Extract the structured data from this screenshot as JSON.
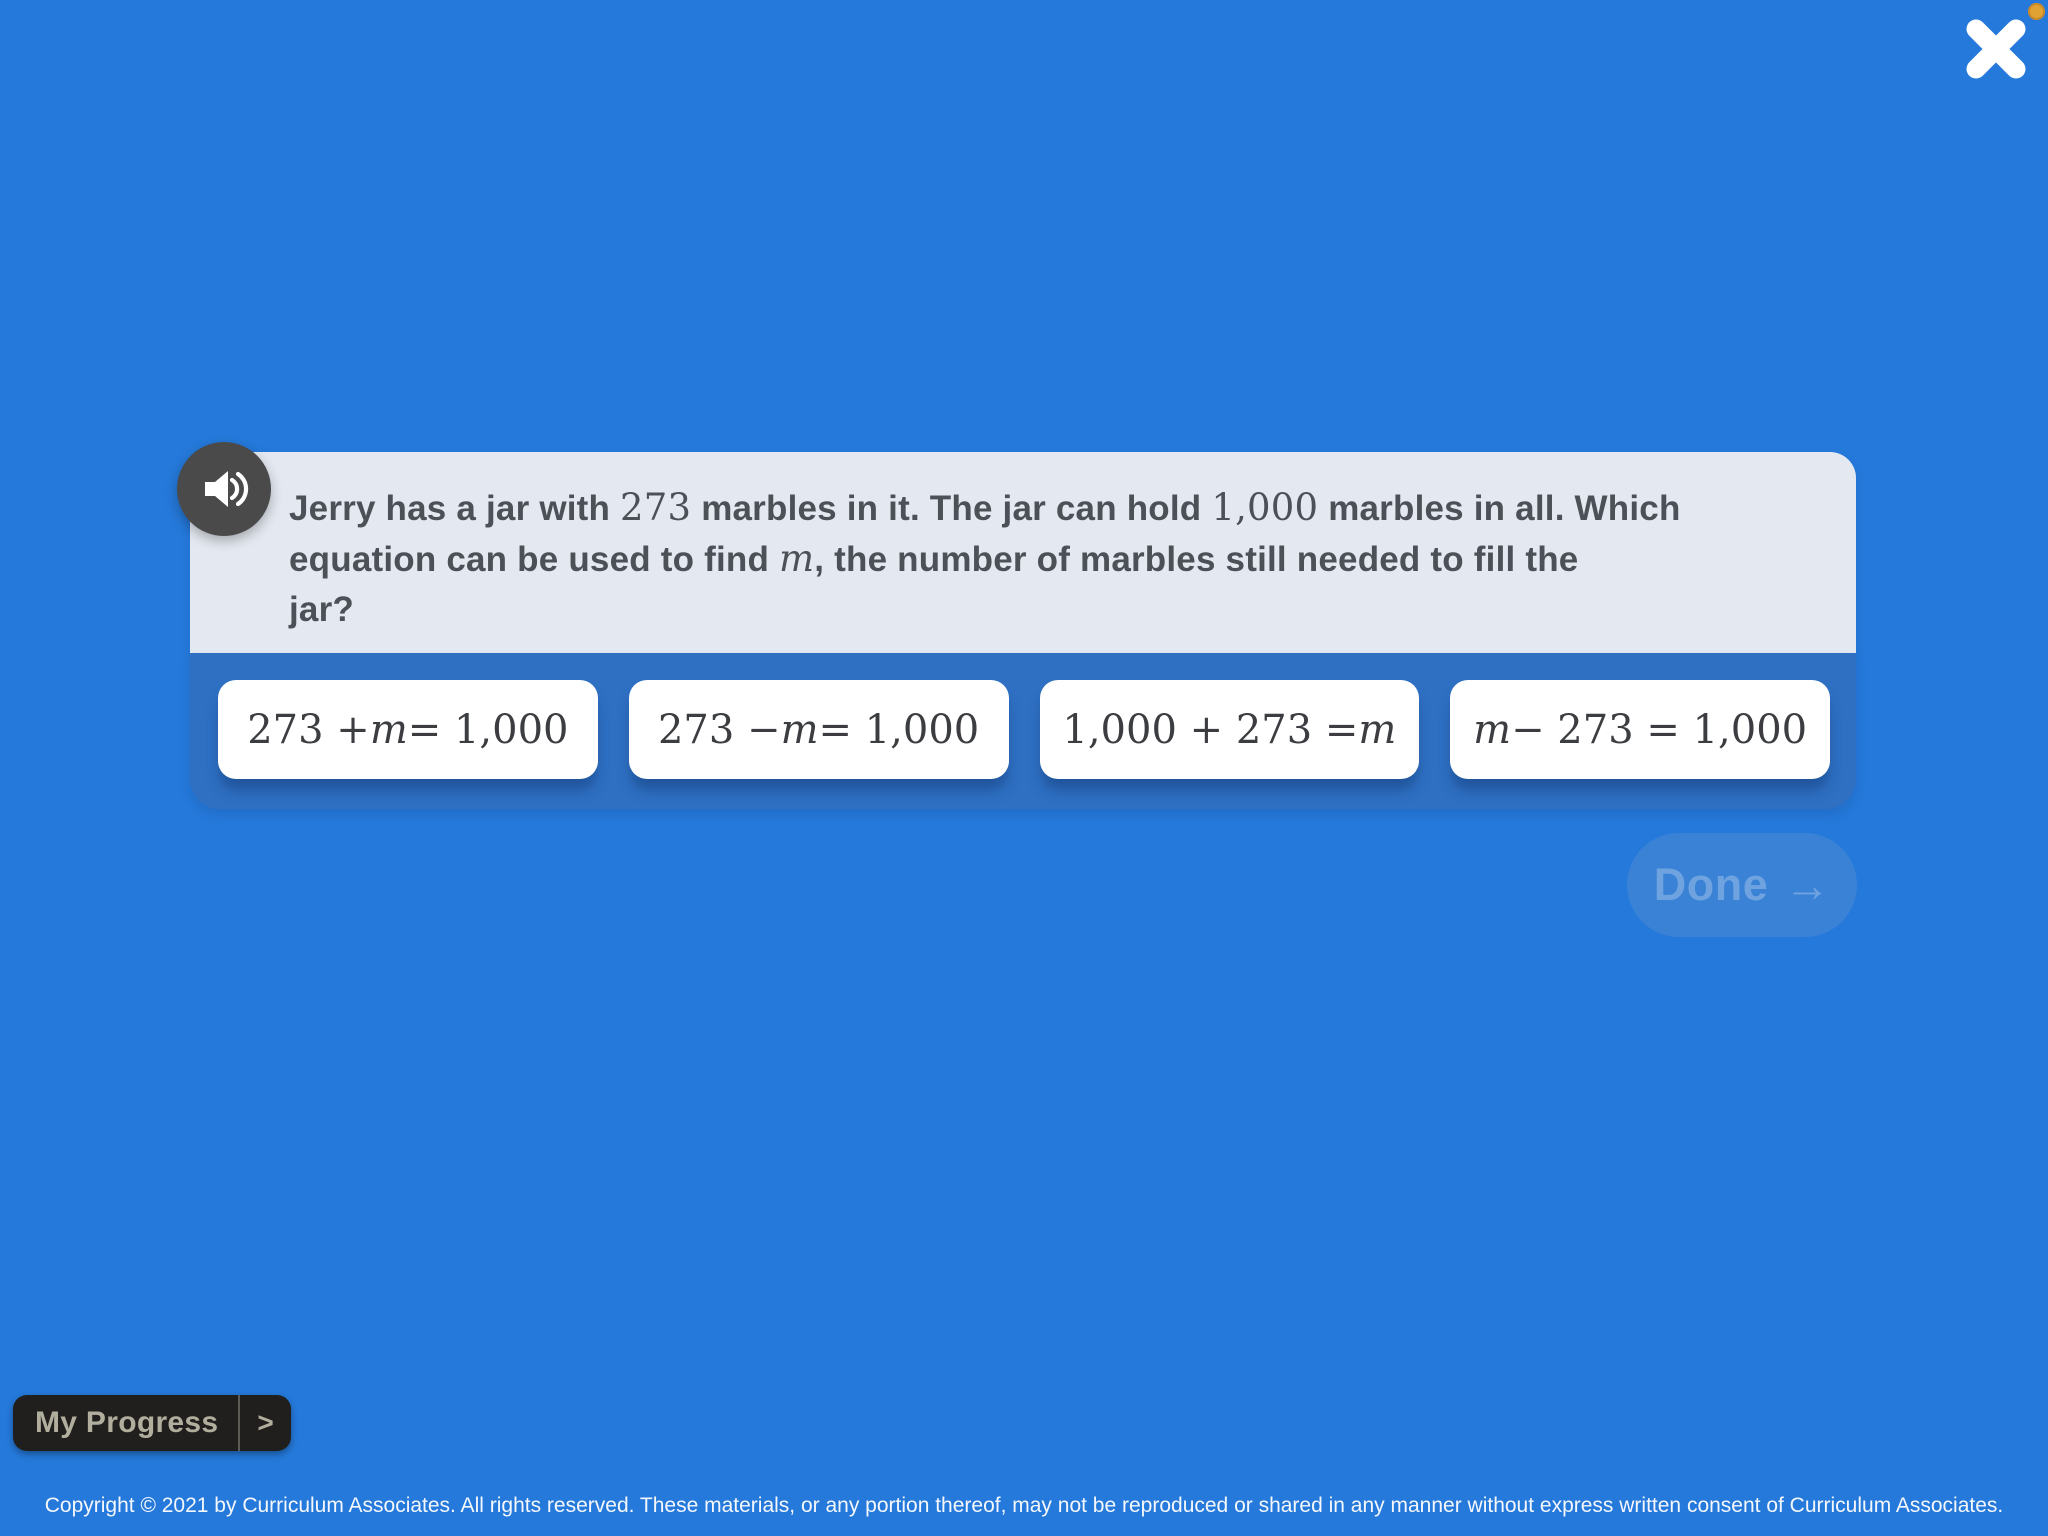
{
  "colors": {
    "background": "#2579da",
    "options_band": "#2f70c3",
    "question_card": "#e4e9f1",
    "option_card": "#ffffff",
    "question_text": "#4b5157",
    "equation_text": "#3b3d40",
    "done_button_bg": "#3a82d6",
    "done_button_text": "#6fa3e0",
    "progress_button_bg": "#201f1d",
    "progress_button_text": "#b2ae9e",
    "speaker_button_bg": "#4a4a4a",
    "close_icon": "#ffffff",
    "notification_dot": "#dfa233"
  },
  "question": {
    "lines": [
      [
        {
          "t": "Jerry has a jar with "
        },
        {
          "t": "273",
          "style": "num"
        },
        {
          "t": " marbles in it. The jar can hold "
        },
        {
          "t": "1,000",
          "style": "num"
        },
        {
          "t": " marbles in all. Which"
        }
      ],
      [
        {
          "t": "equation can be used to find "
        },
        {
          "t": "m",
          "style": "var"
        },
        {
          "t": ", the number of marbles still needed to fill the"
        }
      ],
      [
        {
          "t": "jar?"
        }
      ]
    ]
  },
  "options": [
    {
      "segments": [
        {
          "t": "273 + "
        },
        {
          "t": "m",
          "style": "var"
        },
        {
          "t": " = 1,000"
        }
      ]
    },
    {
      "segments": [
        {
          "t": "273 − "
        },
        {
          "t": "m",
          "style": "var"
        },
        {
          "t": " = 1,000"
        }
      ]
    },
    {
      "segments": [
        {
          "t": "1,000 + 273 = "
        },
        {
          "t": "m",
          "style": "var"
        }
      ]
    },
    {
      "segments": [
        {
          "t": "m",
          "style": "var"
        },
        {
          "t": " − 273 = 1,000"
        }
      ]
    }
  ],
  "done_button": {
    "label": "Done",
    "arrow": "→",
    "enabled": false
  },
  "progress_button": {
    "label": "My Progress",
    "chevron": ">"
  },
  "footer": {
    "copyright": "Copyright © 2021 by Curriculum Associates. All rights reserved. These materials, or any portion thereof, may not be reproduced or shared in any manner without express written consent of Curriculum Associates."
  }
}
